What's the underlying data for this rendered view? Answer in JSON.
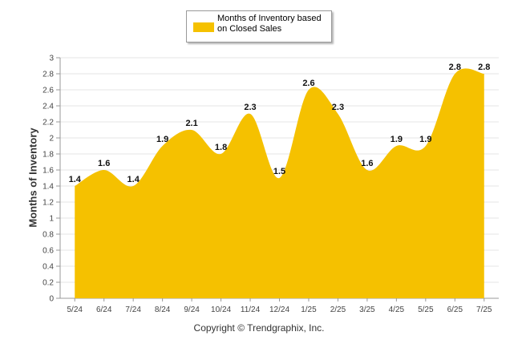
{
  "colors": {
    "area": "#F5C100",
    "grid": "#e6e6e6",
    "axis": "#999999"
  },
  "chart_data": {
    "type": "area",
    "title": "",
    "ylabel": "Months of Inventory",
    "xlabel": "",
    "categories": [
      "5/24",
      "6/24",
      "7/24",
      "8/24",
      "9/24",
      "10/24",
      "11/24",
      "12/24",
      "1/25",
      "2/25",
      "3/25",
      "4/25",
      "5/25",
      "6/25",
      "7/25"
    ],
    "series": [
      {
        "name": "Months of Inventory based on Closed Sales",
        "values": [
          1.4,
          1.6,
          1.4,
          1.9,
          2.1,
          1.8,
          2.3,
          1.5,
          2.6,
          2.3,
          1.6,
          1.9,
          1.9,
          2.8,
          2.8
        ],
        "labels": [
          "1.4",
          "1.6",
          "1.4",
          "1.9",
          "2.1",
          "1.8",
          "2.3",
          "1.5",
          "2.6",
          "2.3",
          "1.6",
          "1.9",
          "1.9",
          "2.8",
          "2.8"
        ]
      }
    ],
    "ylim": [
      0,
      3
    ],
    "yticks": [
      "0",
      "0.2",
      "0.4",
      "0.6",
      "0.8",
      "1",
      "1.2",
      "1.4",
      "1.6",
      "1.8",
      "2",
      "2.2",
      "2.4",
      "2.6",
      "2.8",
      "3"
    ],
    "grid": true,
    "legend": "top-center"
  },
  "legend": {
    "label": "Months of Inventory based on Closed Sales"
  },
  "footer": {
    "copyright": "Copyright © Trendgraphix, Inc."
  }
}
